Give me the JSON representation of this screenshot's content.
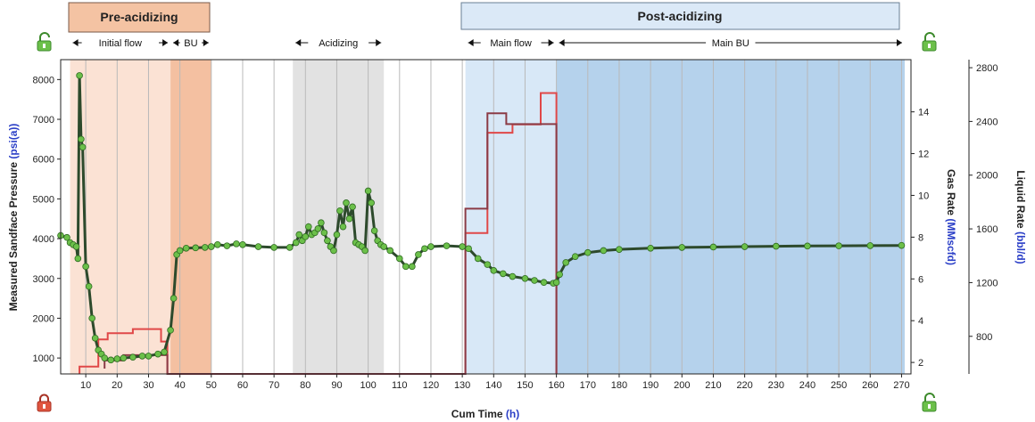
{
  "chart_data": {
    "type": "line",
    "xlabel_prefix": "Cum Time",
    "xlabel_unit": "(h)",
    "xlim": [
      2,
      273
    ],
    "x_ticks": [
      10,
      20,
      30,
      40,
      50,
      60,
      70,
      80,
      90,
      100,
      110,
      120,
      130,
      140,
      150,
      160,
      170,
      180,
      190,
      200,
      210,
      220,
      230,
      240,
      250,
      260,
      270
    ],
    "left_axis": {
      "label_prefix": "Measured Sandface Pressure",
      "label_unit": "(psi(a))",
      "ylim": [
        600,
        8500
      ],
      "ticks": [
        1000,
        2000,
        3000,
        4000,
        5000,
        6000,
        7000,
        8000
      ]
    },
    "right_axis_1": {
      "label_prefix": "Gas Rate",
      "label_unit": "(MMscfd)",
      "ylim": [
        1.45,
        16.5
      ],
      "ticks": [
        2,
        4,
        6,
        8,
        10,
        12,
        14
      ]
    },
    "right_axis_2": {
      "label_prefix": "Liquid Rate",
      "label_unit": "(bbl/d)",
      "ylim": [
        520,
        2860
      ],
      "ticks": [
        800,
        1200,
        1600,
        2000,
        2400,
        2800
      ]
    },
    "phases": [
      {
        "name": "Pre-acidizing",
        "start": 5,
        "end": 50,
        "color": "#f7cfb5"
      },
      {
        "name": "Post-acidizing",
        "start": 131,
        "end": 271,
        "color": "#dbe9f7"
      }
    ],
    "segments": [
      {
        "label": "Initial flow",
        "start": 5,
        "end": 37
      },
      {
        "label": "BU",
        "start": 37,
        "end": 50
      },
      {
        "label": "Acidizing",
        "start": 76,
        "end": 105
      },
      {
        "label": "Main flow",
        "start": 131,
        "end": 160
      },
      {
        "label": "Main BU",
        "start": 160,
        "end": 271
      }
    ],
    "shaded_regions": [
      {
        "start": 5,
        "end": 37,
        "color": "#fbe2d4"
      },
      {
        "start": 37,
        "end": 50,
        "color": "#f4c0a1"
      },
      {
        "start": 76,
        "end": 105,
        "color": "#e2e2e2"
      },
      {
        "start": 131,
        "end": 160,
        "color": "#d8e8f7"
      },
      {
        "start": 160,
        "end": 271,
        "color": "#b5d2ec"
      }
    ],
    "series": [
      {
        "name": "Measured Sandface Pressure",
        "axis": "left",
        "style": "markers",
        "color": "#6cc04a",
        "x": [
          2,
          4,
          5,
          6,
          7,
          7.5,
          8,
          8.5,
          9,
          10,
          11,
          12,
          13,
          14,
          15,
          16,
          18,
          20,
          22,
          25,
          28,
          30,
          33,
          35,
          37,
          38,
          39,
          40,
          42,
          45,
          48,
          50,
          52,
          55,
          58,
          60,
          65,
          70,
          75,
          77,
          78,
          79,
          80,
          81,
          82,
          83,
          84,
          85,
          86,
          87,
          88,
          89,
          90,
          91,
          92,
          93,
          94,
          95,
          96,
          97,
          98,
          99,
          100,
          101,
          102,
          103,
          104,
          105,
          107,
          110,
          112,
          114,
          116,
          118,
          120,
          125,
          130,
          132,
          135,
          138,
          140,
          143,
          146,
          150,
          153,
          156,
          159,
          160,
          161,
          163,
          166,
          170,
          175,
          180,
          190,
          200,
          210,
          220,
          230,
          240,
          250,
          260,
          270
        ],
        "y": [
          4080,
          4030,
          3900,
          3850,
          3800,
          3500,
          8100,
          6500,
          6300,
          3300,
          2800,
          2000,
          1500,
          1200,
          1100,
          1000,
          950,
          980,
          1000,
          1020,
          1050,
          1050,
          1100,
          1150,
          1700,
          2500,
          3600,
          3700,
          3760,
          3770,
          3780,
          3800,
          3850,
          3820,
          3870,
          3850,
          3800,
          3780,
          3780,
          3900,
          4100,
          3950,
          4050,
          4300,
          4100,
          4150,
          4250,
          4400,
          4150,
          3950,
          3800,
          3700,
          4100,
          4700,
          4300,
          4900,
          4500,
          4800,
          3900,
          3850,
          3800,
          3700,
          5200,
          4900,
          4200,
          3950,
          3850,
          3800,
          3700,
          3500,
          3300,
          3300,
          3600,
          3750,
          3800,
          3820,
          3800,
          3750,
          3500,
          3350,
          3200,
          3120,
          3050,
          3000,
          2950,
          2900,
          2880,
          2900,
          3100,
          3400,
          3550,
          3650,
          3700,
          3730,
          3760,
          3780,
          3790,
          3800,
          3810,
          3815,
          3820,
          3825,
          3830
        ]
      },
      {
        "name": "Gas Rate",
        "axis": "right1",
        "style": "step",
        "color": "#e04848",
        "x": [
          8,
          8,
          14,
          14,
          17,
          17,
          25,
          25,
          34,
          34,
          36,
          36,
          131,
          131,
          138,
          138,
          146,
          146,
          155,
          155,
          160,
          160
        ],
        "y": [
          1.45,
          1.8,
          1.8,
          3.1,
          3.1,
          3.4,
          3.4,
          3.6,
          3.6,
          3.0,
          3.0,
          1.45,
          1.45,
          8.2,
          8.2,
          13.0,
          13.0,
          13.4,
          13.4,
          14.9,
          14.9,
          1.45
        ]
      },
      {
        "name": "Liquid Rate",
        "axis": "right2",
        "style": "step",
        "color": "#8b3b46",
        "x": [
          16,
          16,
          22,
          22,
          36,
          36,
          131,
          131,
          138,
          138,
          144,
          144,
          160,
          160
        ],
        "y": [
          560,
          620,
          620,
          660,
          660,
          520,
          520,
          1750,
          1750,
          2460,
          2460,
          2380,
          2380,
          520
        ]
      }
    ]
  }
}
